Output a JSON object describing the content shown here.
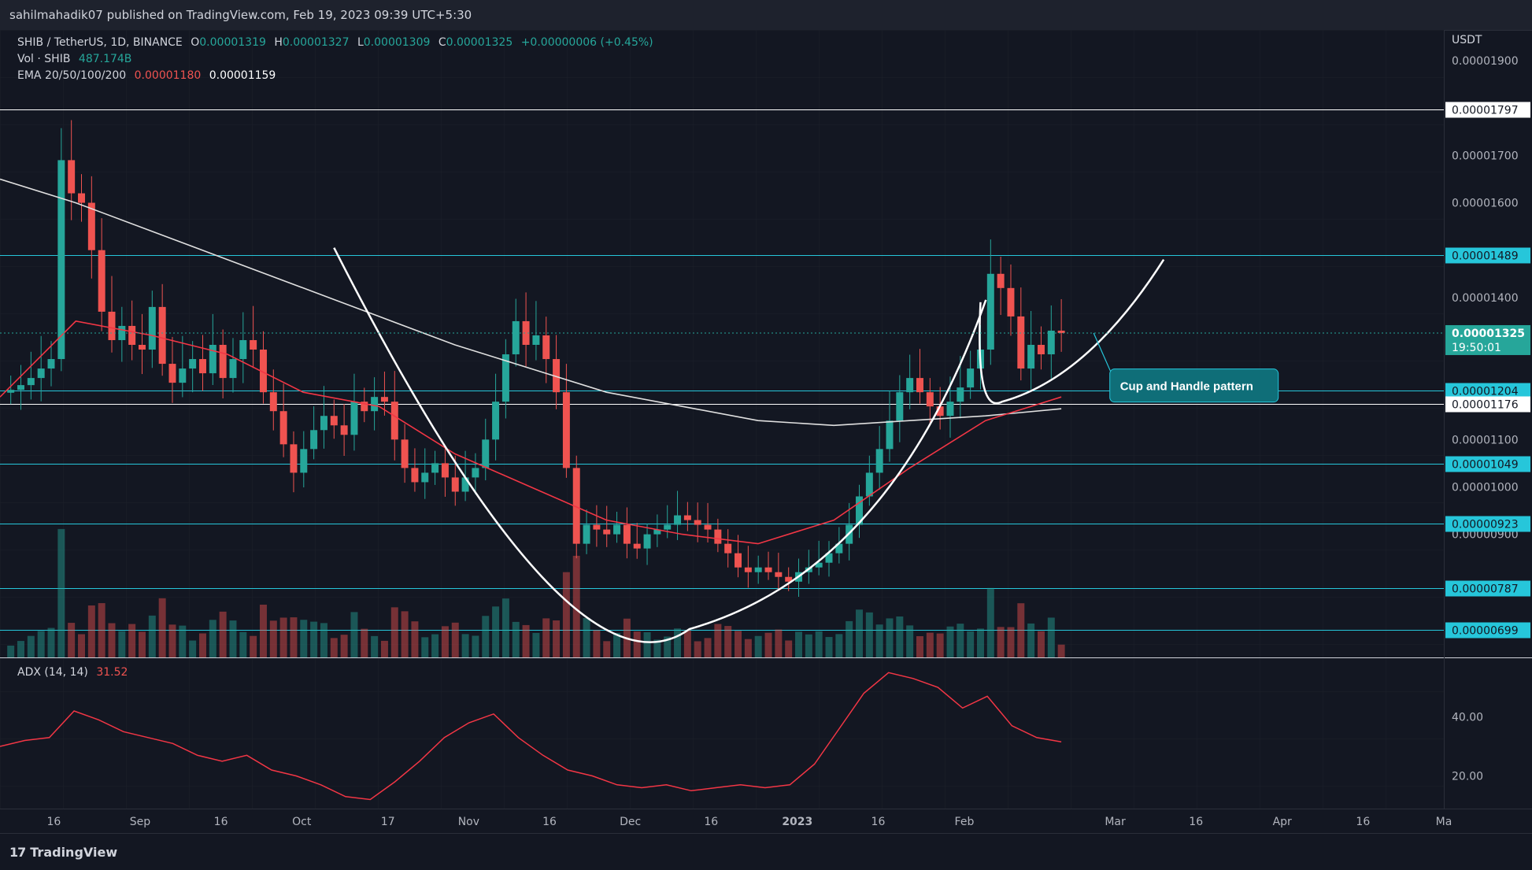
{
  "header": {
    "publisher": "sahilmahadik07 published on TradingView.com, Feb 19, 2023 09:39 UTC+5:30"
  },
  "legend": {
    "symbol": "SHIB / TetherUS, 1D, BINANCE",
    "o_label": "O",
    "o_value": "0.00001319",
    "h_label": "H",
    "h_value": "0.00001327",
    "l_label": "L",
    "l_value": "0.00001309",
    "c_label": "C",
    "c_value": "0.00001325",
    "change": "+0.00000006 (+0.45%)",
    "vol_label": "Vol · SHIB",
    "vol_value": "487.174B",
    "ema_label": "EMA 20/50/100/200",
    "ema_value_1": "0.00001180",
    "ema_value_2": "0.00001159",
    "adx_label": "ADX (14, 14)",
    "adx_value": "31.52"
  },
  "price_scale": {
    "unit": "USDT",
    "ticks": [
      "0.00001900",
      "0.00001700",
      "0.00001600",
      "0.00001400",
      "0.00001100",
      "0.00001000",
      "0.00000900"
    ],
    "current_price": "0.00001325",
    "countdown": "19:50:01"
  },
  "adx_scale": {
    "ticks": [
      "40.00",
      "20.00"
    ]
  },
  "time_axis": {
    "labels": [
      "16",
      "Sep",
      "16",
      "Oct",
      "17",
      "Nov",
      "16",
      "Dec",
      "16",
      "2023",
      "16",
      "Feb",
      "Mar",
      "16",
      "Apr",
      "16",
      "Ma"
    ]
  },
  "annotation": {
    "text": "Cup and Handle pattern"
  },
  "footer": {
    "brand": "TradingView",
    "brand_glyph": "17"
  },
  "colors": {
    "up": "#26a69a",
    "down": "#ef5350",
    "level": "#26c6da",
    "ema_red": "#f23645",
    "ema_white": "#e0e0e0",
    "callout": "#0f6e78"
  },
  "chart_data": {
    "type": "candlestick",
    "symbol": "SHIB / TetherUS",
    "timeframe": "1D",
    "exchange": "BINANCE",
    "x_range": [
      "2022-08-06",
      "2023-05-01"
    ],
    "ylim": [
      6.4e-06,
      1.965e-05
    ],
    "price_levels": [
      {
        "price": 1.797e-05,
        "label": "0.00001797",
        "style": "white"
      },
      {
        "price": 1.489e-05,
        "label": "0.00001489",
        "style": "cyan"
      },
      {
        "price": 1.204e-05,
        "label": "0.00001204",
        "style": "cyan"
      },
      {
        "price": 1.176e-05,
        "label": "0.00001176",
        "style": "white"
      },
      {
        "price": 1.049e-05,
        "label": "0.00001049",
        "style": "cyan"
      },
      {
        "price": 9.23e-06,
        "label": "0.00000923",
        "style": "cyan"
      },
      {
        "price": 7.87e-06,
        "label": "0.00000787",
        "style": "cyan"
      },
      {
        "price": 6.99e-06,
        "label": "0.00000699",
        "style": "cyan"
      }
    ],
    "candles_close": [
      1.205e-05,
      1.215e-05,
      1.23e-05,
      1.25e-05,
      1.27e-05,
      1.69e-05,
      1.62e-05,
      1.6e-05,
      1.5e-05,
      1.37e-05,
      1.31e-05,
      1.34e-05,
      1.3e-05,
      1.29e-05,
      1.38e-05,
      1.26e-05,
      1.22e-05,
      1.25e-05,
      1.27e-05,
      1.24e-05,
      1.3e-05,
      1.23e-05,
      1.27e-05,
      1.31e-05,
      1.29e-05,
      1.2e-05,
      1.16e-05,
      1.09e-05,
      1.03e-05,
      1.08e-05,
      1.12e-05,
      1.15e-05,
      1.13e-05,
      1.11e-05,
      1.18e-05,
      1.16e-05,
      1.19e-05,
      1.18e-05,
      1.1e-05,
      1.04e-05,
      1.01e-05,
      1.03e-05,
      1.05e-05,
      1.02e-05,
      9.9e-06,
      1.02e-05,
      1.04e-05,
      1.1e-05,
      1.18e-05,
      1.28e-05,
      1.35e-05,
      1.3e-05,
      1.32e-05,
      1.27e-05,
      1.2e-05,
      1.04e-05,
      8.8e-06,
      9.2e-06,
      9.1e-06,
      9e-06,
      9.2e-06,
      8.8e-06,
      8.7e-06,
      9e-06,
      9.1e-06,
      9.2e-06,
      9.4e-06,
      9.3e-06,
      9.2e-06,
      9.1e-06,
      8.8e-06,
      8.6e-06,
      8.3e-06,
      8.2e-06,
      8.3e-06,
      8.2e-06,
      8.1e-06,
      8e-06,
      8.2e-06,
      8.3e-06,
      8.4e-06,
      8.6e-06,
      8.8e-06,
      9.2e-06,
      9.8e-06,
      1.03e-05,
      1.08e-05,
      1.14e-05,
      1.2e-05,
      1.23e-05,
      1.2e-05,
      1.17e-05,
      1.15e-05,
      1.18e-05,
      1.21e-05,
      1.25e-05,
      1.29e-05,
      1.45e-05,
      1.42e-05,
      1.36e-05,
      1.25e-05,
      1.3e-05,
      1.28e-05,
      1.33e-05,
      1.325e-05
    ],
    "volume_note": "volume histogram in lower price panel, units SHIB",
    "ema_20": [
      1.19e-05,
      1.35e-05,
      1.32e-05,
      1.28e-05,
      1.2e-05,
      1.17e-05,
      1.07e-05,
      1e-05,
      9.3e-06,
      9e-06,
      8.8e-06,
      9.3e-06,
      1.04e-05,
      1.14e-05,
      1.19e-05
    ],
    "ema_200": [
      1.65e-05,
      1.6e-05,
      1.54e-05,
      1.48e-05,
      1.42e-05,
      1.36e-05,
      1.3e-05,
      1.25e-05,
      1.2e-05,
      1.17e-05,
      1.14e-05,
      1.13e-05,
      1.14e-05,
      1.15e-05,
      1.165e-05
    ],
    "adx": {
      "name": "ADX (14, 14)",
      "ylim": [
        10,
        58
      ],
      "ticks": [
        40,
        20
      ],
      "values": [
        30,
        32,
        33,
        42,
        39,
        35,
        33,
        31,
        27,
        25,
        27,
        22,
        20,
        17,
        13,
        12,
        18,
        25,
        33,
        38,
        41,
        33,
        27,
        22,
        20,
        17,
        16,
        17,
        15,
        16,
        17,
        16,
        17,
        24,
        36,
        48,
        55,
        53,
        50,
        43,
        47,
        37,
        33,
        31.52
      ]
    }
  }
}
